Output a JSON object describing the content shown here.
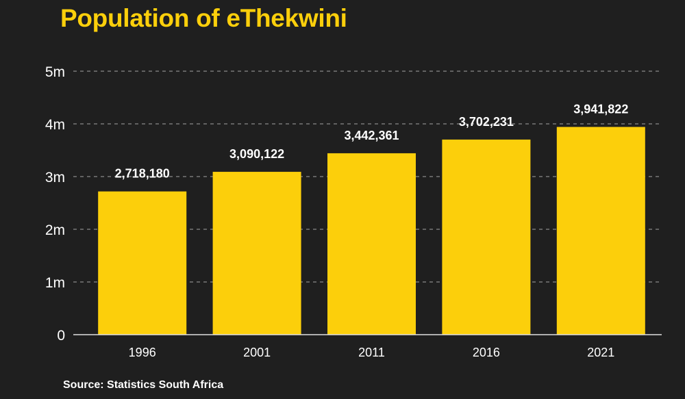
{
  "chart_data": {
    "type": "bar",
    "title": "Population of eThekwini",
    "categories": [
      "1996",
      "2001",
      "2011",
      "2016",
      "2021"
    ],
    "values": [
      2718180,
      3090122,
      3442361,
      3702231,
      3941822
    ],
    "data_labels": [
      "2,718,180",
      "3,090,122",
      "3,442,361",
      "3,702,231",
      "3,941,822"
    ],
    "y_ticks": [
      {
        "value": 0,
        "label": "0"
      },
      {
        "value": 1000000,
        "label": "1m"
      },
      {
        "value": 2000000,
        "label": "2m"
      },
      {
        "value": 3000000,
        "label": "3m"
      },
      {
        "value": 4000000,
        "label": "4m"
      },
      {
        "value": 5000000,
        "label": "5m"
      }
    ],
    "ylim": [
      0,
      5000000
    ],
    "grid": true,
    "colors": {
      "bar": "#fccf0b",
      "title": "#fccf0b",
      "text": "#ffffff",
      "background": "#1f1f1f",
      "grid": "#8a8a8a"
    }
  },
  "source": "Source: Statistics South Africa"
}
